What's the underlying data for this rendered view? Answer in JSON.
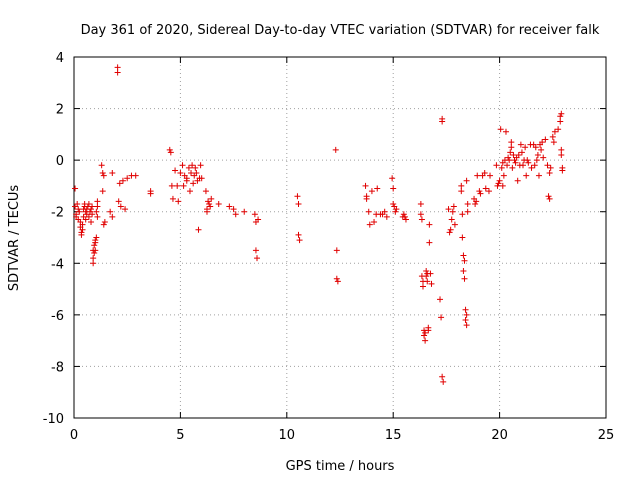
{
  "chart_data": {
    "type": "scatter",
    "title": "Day 361 of 2020, Sidereal Day-to-day VTEC variation (SDTVAR) for receiver falk",
    "xlabel": "GPS time / hours",
    "ylabel": "SDTVAR / TECUs",
    "xlim": [
      0,
      25
    ],
    "ylim": [
      -10,
      4
    ],
    "xticks": [
      0,
      5,
      10,
      15,
      20,
      25
    ],
    "yticks": [
      -10,
      -8,
      -6,
      -4,
      -2,
      0,
      2,
      4
    ],
    "grid": true,
    "marker": "+",
    "marker_color": "#e00000",
    "series": [
      {
        "name": "SDTVAR",
        "points": [
          [
            0.05,
            -1.1
          ],
          [
            0.05,
            -1.8
          ],
          [
            0.1,
            -2.1
          ],
          [
            0.1,
            -2.2
          ],
          [
            0.15,
            -1.7
          ],
          [
            0.2,
            -1.9
          ],
          [
            0.2,
            -2.3
          ],
          [
            0.25,
            -2.0
          ],
          [
            0.3,
            -2.4
          ],
          [
            0.3,
            -2.6
          ],
          [
            0.35,
            -2.8
          ],
          [
            0.35,
            -2.9
          ],
          [
            0.4,
            -2.7
          ],
          [
            0.4,
            -2.5
          ],
          [
            0.45,
            -2.2
          ],
          [
            0.45,
            -1.9
          ],
          [
            0.5,
            -1.8
          ],
          [
            0.5,
            -1.7
          ],
          [
            0.55,
            -2.0
          ],
          [
            0.55,
            -2.3
          ],
          [
            0.6,
            -1.9
          ],
          [
            0.6,
            -2.1
          ],
          [
            0.65,
            -1.8
          ],
          [
            0.7,
            -1.7
          ],
          [
            0.7,
            -2.2
          ],
          [
            0.75,
            -2.0
          ],
          [
            0.8,
            -1.9
          ],
          [
            0.8,
            -2.4
          ],
          [
            0.85,
            -2.1
          ],
          [
            0.85,
            -1.8
          ],
          [
            0.9,
            -3.5
          ],
          [
            0.9,
            -3.8
          ],
          [
            0.9,
            -4.0
          ],
          [
            0.95,
            -3.3
          ],
          [
            0.95,
            -3.6
          ],
          [
            1.0,
            -3.2
          ],
          [
            1.0,
            -3.1
          ],
          [
            1.0,
            -3.5
          ],
          [
            1.05,
            -3.0
          ],
          [
            1.05,
            -2.0
          ],
          [
            1.1,
            -1.8
          ],
          [
            1.1,
            -1.6
          ],
          [
            1.1,
            -2.2
          ],
          [
            1.3,
            -0.2
          ],
          [
            1.35,
            -0.5
          ],
          [
            1.4,
            -0.6
          ],
          [
            1.35,
            -1.2
          ],
          [
            1.4,
            -2.5
          ],
          [
            1.45,
            -2.4
          ],
          [
            1.7,
            -2.0
          ],
          [
            1.8,
            -2.2
          ],
          [
            1.8,
            -0.5
          ],
          [
            2.05,
            3.6
          ],
          [
            2.05,
            3.4
          ],
          [
            2.1,
            -1.6
          ],
          [
            2.2,
            -1.8
          ],
          [
            2.15,
            -0.9
          ],
          [
            2.3,
            -0.8
          ],
          [
            2.4,
            -1.9
          ],
          [
            2.5,
            -0.7
          ],
          [
            2.7,
            -0.6
          ],
          [
            2.9,
            -0.6
          ],
          [
            3.6,
            -1.2
          ],
          [
            3.6,
            -1.3
          ],
          [
            4.5,
            0.4
          ],
          [
            4.55,
            0.3
          ],
          [
            4.6,
            -1.0
          ],
          [
            4.65,
            -1.5
          ],
          [
            4.75,
            -0.4
          ],
          [
            4.85,
            -1.0
          ],
          [
            4.9,
            -1.6
          ],
          [
            5.0,
            -0.5
          ],
          [
            5.1,
            -0.2
          ],
          [
            5.15,
            -1.0
          ],
          [
            5.2,
            -0.6
          ],
          [
            5.3,
            -0.8
          ],
          [
            5.3,
            -0.7
          ],
          [
            5.4,
            -0.3
          ],
          [
            5.45,
            -1.2
          ],
          [
            5.5,
            -0.5
          ],
          [
            5.55,
            -0.2
          ],
          [
            5.6,
            -0.9
          ],
          [
            5.65,
            -0.6
          ],
          [
            5.7,
            -0.3
          ],
          [
            5.75,
            -0.5
          ],
          [
            5.8,
            -0.8
          ],
          [
            5.85,
            -2.7
          ],
          [
            5.9,
            -0.7
          ],
          [
            5.95,
            -0.2
          ],
          [
            6.0,
            -0.7
          ],
          [
            6.2,
            -1.2
          ],
          [
            6.25,
            -1.9
          ],
          [
            6.25,
            -2.0
          ],
          [
            6.3,
            -1.6
          ],
          [
            6.35,
            -1.7
          ],
          [
            6.4,
            -1.8
          ],
          [
            6.45,
            -1.5
          ],
          [
            6.8,
            -1.7
          ],
          [
            7.3,
            -1.8
          ],
          [
            7.5,
            -1.9
          ],
          [
            7.6,
            -2.1
          ],
          [
            8.0,
            -2.0
          ],
          [
            8.5,
            -2.1
          ],
          [
            8.55,
            -2.4
          ],
          [
            8.55,
            -3.5
          ],
          [
            8.6,
            -3.8
          ],
          [
            8.65,
            -2.3
          ],
          [
            10.5,
            -1.4
          ],
          [
            10.55,
            -1.7
          ],
          [
            10.55,
            -2.9
          ],
          [
            10.6,
            -3.1
          ],
          [
            12.3,
            0.4
          ],
          [
            12.35,
            -3.5
          ],
          [
            12.35,
            -4.6
          ],
          [
            12.4,
            -4.7
          ],
          [
            13.7,
            -1.0
          ],
          [
            13.75,
            -1.4
          ],
          [
            13.75,
            -1.5
          ],
          [
            13.85,
            -2.0
          ],
          [
            13.9,
            -2.5
          ],
          [
            14.0,
            -1.2
          ],
          [
            14.1,
            -2.4
          ],
          [
            14.2,
            -2.1
          ],
          [
            14.25,
            -1.1
          ],
          [
            14.4,
            -2.1
          ],
          [
            14.5,
            -2.1
          ],
          [
            14.6,
            -2.0
          ],
          [
            14.7,
            -2.2
          ],
          [
            14.95,
            -0.7
          ],
          [
            15.0,
            -1.1
          ],
          [
            15.0,
            -1.7
          ],
          [
            15.05,
            -1.8
          ],
          [
            15.1,
            -2.0
          ],
          [
            15.15,
            -1.9
          ],
          [
            15.45,
            -2.2
          ],
          [
            15.5,
            -2.1
          ],
          [
            15.55,
            -2.2
          ],
          [
            15.6,
            -2.3
          ],
          [
            16.3,
            -1.7
          ],
          [
            16.3,
            -2.1
          ],
          [
            16.35,
            -2.3
          ],
          [
            16.35,
            -4.5
          ],
          [
            16.4,
            -4.7
          ],
          [
            16.4,
            -4.9
          ],
          [
            16.45,
            -6.6
          ],
          [
            16.45,
            -6.8
          ],
          [
            16.5,
            -7.0
          ],
          [
            16.5,
            -6.7
          ],
          [
            16.55,
            -4.3
          ],
          [
            16.55,
            -4.5
          ],
          [
            16.6,
            -4.7
          ],
          [
            16.6,
            -4.4
          ],
          [
            16.65,
            -6.5
          ],
          [
            16.65,
            -6.6
          ],
          [
            16.7,
            -3.2
          ],
          [
            16.7,
            -2.5
          ],
          [
            16.75,
            -4.4
          ],
          [
            16.8,
            -4.8
          ],
          [
            17.2,
            -5.4
          ],
          [
            17.25,
            -6.1
          ],
          [
            17.3,
            1.5
          ],
          [
            17.3,
            1.6
          ],
          [
            17.3,
            -8.4
          ],
          [
            17.35,
            -8.6
          ],
          [
            17.6,
            -1.9
          ],
          [
            17.65,
            -2.8
          ],
          [
            17.7,
            -2.7
          ],
          [
            17.75,
            -2.3
          ],
          [
            17.8,
            -2.0
          ],
          [
            17.85,
            -1.8
          ],
          [
            17.9,
            -2.5
          ],
          [
            18.2,
            -1.0
          ],
          [
            18.2,
            -1.2
          ],
          [
            18.25,
            -2.1
          ],
          [
            18.25,
            -3.0
          ],
          [
            18.3,
            -3.7
          ],
          [
            18.3,
            -4.3
          ],
          [
            18.35,
            -3.9
          ],
          [
            18.35,
            -4.6
          ],
          [
            18.4,
            -5.8
          ],
          [
            18.4,
            -6.2
          ],
          [
            18.45,
            -6.0
          ],
          [
            18.45,
            -6.4
          ],
          [
            18.45,
            -0.8
          ],
          [
            18.5,
            -1.7
          ],
          [
            18.5,
            -2.0
          ],
          [
            18.8,
            -1.5
          ],
          [
            18.85,
            -1.7
          ],
          [
            18.9,
            -1.6
          ],
          [
            18.95,
            -0.6
          ],
          [
            19.05,
            -1.2
          ],
          [
            19.1,
            -1.3
          ],
          [
            19.2,
            -0.6
          ],
          [
            19.3,
            -0.5
          ],
          [
            19.35,
            -1.1
          ],
          [
            19.5,
            -1.2
          ],
          [
            19.55,
            -0.6
          ],
          [
            19.85,
            -0.2
          ],
          [
            19.9,
            -1.0
          ],
          [
            19.95,
            -0.9
          ],
          [
            20.0,
            -0.8
          ],
          [
            20.05,
            1.2
          ],
          [
            20.1,
            -0.3
          ],
          [
            20.15,
            -0.1
          ],
          [
            20.15,
            -1.0
          ],
          [
            20.2,
            -0.6
          ],
          [
            20.25,
            0.0
          ],
          [
            20.3,
            1.1
          ],
          [
            20.35,
            -0.2
          ],
          [
            20.4,
            0.1
          ],
          [
            20.45,
            0.0
          ],
          [
            20.5,
            0.3
          ],
          [
            20.55,
            0.5
          ],
          [
            20.55,
            0.7
          ],
          [
            20.6,
            -0.3
          ],
          [
            20.65,
            0.2
          ],
          [
            20.7,
            0.0
          ],
          [
            20.75,
            -0.1
          ],
          [
            20.8,
            0.1
          ],
          [
            20.85,
            -0.8
          ],
          [
            20.9,
            0.2
          ],
          [
            20.95,
            -0.2
          ],
          [
            21.0,
            0.6
          ],
          [
            21.05,
            0.3
          ],
          [
            21.1,
            -0.2
          ],
          [
            21.15,
            0.0
          ],
          [
            21.2,
            0.5
          ],
          [
            21.25,
            -0.6
          ],
          [
            21.3,
            0.0
          ],
          [
            21.35,
            -0.1
          ],
          [
            21.45,
            0.6
          ],
          [
            21.5,
            -0.3
          ],
          [
            21.6,
            0.6
          ],
          [
            21.65,
            -0.2
          ],
          [
            21.7,
            0.5
          ],
          [
            21.75,
            0.0
          ],
          [
            21.8,
            0.2
          ],
          [
            21.85,
            -0.6
          ],
          [
            21.9,
            0.6
          ],
          [
            21.95,
            0.4
          ],
          [
            22.0,
            0.7
          ],
          [
            22.05,
            0.1
          ],
          [
            22.15,
            0.8
          ],
          [
            22.25,
            -0.2
          ],
          [
            22.3,
            -1.4
          ],
          [
            22.35,
            -1.5
          ],
          [
            22.35,
            -0.5
          ],
          [
            22.4,
            -0.3
          ],
          [
            22.5,
            0.9
          ],
          [
            22.55,
            0.7
          ],
          [
            22.6,
            1.1
          ],
          [
            22.75,
            1.2
          ],
          [
            22.85,
            1.5
          ],
          [
            22.85,
            1.7
          ],
          [
            22.9,
            1.8
          ],
          [
            22.9,
            0.4
          ],
          [
            22.9,
            0.2
          ],
          [
            22.95,
            -0.3
          ],
          [
            22.95,
            -0.4
          ]
        ]
      }
    ]
  }
}
